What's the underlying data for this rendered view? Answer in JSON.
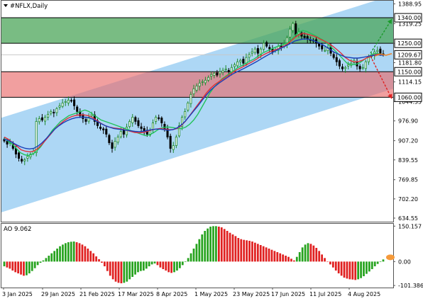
{
  "symbol_title": "#NFLX,Daily",
  "ao_title": "AO 9.062",
  "colors": {
    "channel": "#9fd0f3",
    "resistance_zone": "#4ca55a",
    "support_zone": "#e96b6b",
    "bull_candle": "#1f8a2e",
    "bear_candle": "#000000",
    "ma_fast": "#22c25a",
    "ma_mid": "#e0303a",
    "ma_slow": "#1a3fb8",
    "ao_up": "#27a31f",
    "ao_down": "#e02020",
    "arrow_up": "#1a9a2a",
    "arrow_down": "#e02020",
    "forecast_line": "#f08020"
  },
  "chart_data": [
    {
      "type": "candlestick",
      "title": "#NFLX,Daily",
      "x_labels": [
        "3 Jan 2025",
        "29 Jan 2025",
        "21 Feb 2025",
        "17 Mar 2025",
        "8 Apr 2025",
        "1 May 2025",
        "23 May 2025",
        "17 Jun 2025",
        "11 Jul 2025",
        "4 Aug 2025"
      ],
      "y_ticks": [
        "1388.95",
        "1319.25",
        "1250.00",
        "1181.80",
        "1114.15",
        "1044.55",
        "976.90",
        "907.20",
        "839.55",
        "769.85",
        "702.20",
        "634.55"
      ],
      "ylim": [
        634.55,
        1388.95
      ],
      "levels": [
        {
          "label": "1340.00",
          "value": 1340,
          "role": "resistance-top"
        },
        {
          "label": "1250.00",
          "value": 1250,
          "role": "resistance-bottom"
        },
        {
          "label": "1209.67",
          "value": 1209.67,
          "role": "current-price"
        },
        {
          "label": "1150.00",
          "value": 1150,
          "role": "support-top"
        },
        {
          "label": "1060.00",
          "value": 1060,
          "role": "support-bottom"
        }
      ],
      "channel": {
        "upper_start": 988,
        "upper_end": 1420,
        "lower_start": 655,
        "lower_end": 1090
      },
      "close": [
        906,
        895,
        900,
        880,
        860,
        845,
        835,
        840,
        852,
        860,
        870,
        975,
        985,
        980,
        990,
        1000,
        1010,
        1005,
        1020,
        1030,
        1040,
        1045,
        1050,
        1048,
        1030,
        1010,
        995,
        985,
        975,
        990,
        1000,
        975,
        960,
        950,
        945,
        930,
        900,
        880,
        905,
        920,
        940,
        930,
        955,
        975,
        990,
        975,
        960,
        950,
        940,
        930,
        945,
        970,
        990,
        985,
        970,
        950,
        920,
        880,
        890,
        920,
        960,
        990,
        1010,
        1040,
        1070,
        1090,
        1100,
        1110,
        1115,
        1120,
        1130,
        1140,
        1145,
        1138,
        1150,
        1155,
        1160,
        1150,
        1165,
        1175,
        1185,
        1190,
        1180,
        1200,
        1210,
        1220,
        1230,
        1215,
        1230,
        1250,
        1240,
        1230,
        1220,
        1228,
        1240,
        1235,
        1250,
        1270,
        1300,
        1320,
        1280,
        1290,
        1275,
        1270,
        1265,
        1260,
        1258,
        1250,
        1240,
        1230,
        1225,
        1235,
        1215,
        1200,
        1185,
        1170,
        1160,
        1165,
        1175,
        1180,
        1190,
        1170,
        1160,
        1165,
        1185,
        1200,
        1210,
        1220,
        1225,
        1215,
        1209.67
      ],
      "moving_averages": [
        {
          "role": "fast",
          "values": [
            915,
            905,
            895,
            880,
            865,
            858,
            855,
            860,
            870,
            885,
            905,
            925,
            945,
            960,
            975,
            985,
            995,
            1000,
            1005,
            1010,
            1015,
            1010,
            1000,
            990,
            980,
            975,
            970,
            965,
            960,
            955,
            950,
            945,
            940,
            935,
            930,
            925,
            928,
            935,
            945,
            952,
            955,
            955,
            953,
            950,
            950,
            955,
            965,
            980,
            1000,
            1025,
            1050,
            1075,
            1095,
            1110,
            1125,
            1135,
            1145,
            1155,
            1165,
            1172,
            1180,
            1188,
            1195,
            1205,
            1215,
            1222,
            1228,
            1235,
            1240,
            1245,
            1250,
            1260,
            1275,
            1290,
            1295,
            1292,
            1285,
            1278,
            1270,
            1262,
            1250,
            1238,
            1225,
            1210,
            1195,
            1180,
            1175,
            1175,
            1180,
            1190,
            1200,
            1210,
            1215,
            1213,
            1210
          ]
        },
        {
          "role": "mid",
          "values": [
            920,
            912,
            900,
            888,
            875,
            870,
            868,
            870,
            880,
            895,
            912,
            930,
            948,
            962,
            975,
            985,
            992,
            996,
            998,
            998,
            995,
            988,
            978,
            968,
            960,
            955,
            952,
            950,
            948,
            944,
            940,
            936,
            935,
            936,
            940,
            945,
            948,
            950,
            948,
            946,
            946,
            950,
            960,
            975,
            995,
            1015,
            1035,
            1055,
            1075,
            1092,
            1105,
            1115,
            1125,
            1135,
            1145,
            1155,
            1162,
            1170,
            1178,
            1186,
            1195,
            1205,
            1213,
            1220,
            1225,
            1230,
            1237,
            1245,
            1257,
            1270,
            1280,
            1285,
            1282,
            1278,
            1273,
            1265,
            1258,
            1250,
            1240,
            1228,
            1215,
            1200,
            1190,
            1185,
            1185,
            1190,
            1198,
            1205,
            1210,
            1212,
            1210
          ]
        },
        {
          "role": "slow",
          "values": [
            912,
            908,
            900,
            892,
            885,
            880,
            878,
            880,
            888,
            900,
            915,
            932,
            948,
            960,
            970,
            978,
            984,
            988,
            990,
            990,
            988,
            983,
            975,
            967,
            960,
            955,
            950,
            948,
            946,
            944,
            942,
            940,
            939,
            940,
            943,
            946,
            948,
            948,
            946,
            944,
            946,
            952,
            962,
            976,
            994,
            1012,
            1030,
            1050,
            1068,
            1085,
            1098,
            1110,
            1120,
            1130,
            1140,
            1148,
            1155,
            1162,
            1170,
            1178,
            1186,
            1195,
            1204,
            1212,
            1220,
            1228,
            1235,
            1242,
            1250,
            1258,
            1262,
            1265,
            1265,
            1262,
            1256,
            1250,
            1242,
            1232,
            1222,
            1214,
            1208,
            1202,
            1200,
            1198,
            1198,
            1200,
            1203,
            1206,
            1208,
            1209,
            1208
          ]
        }
      ],
      "arrows": [
        {
          "direction": "up",
          "from": 1215,
          "to": 1335
        },
        {
          "direction": "down",
          "from": 1205,
          "to": 1055
        }
      ]
    },
    {
      "type": "bar",
      "title": "AO 9.062",
      "y_ticks": [
        "150.157",
        "0.00",
        "-101.386"
      ],
      "ylim": [
        -110,
        160
      ],
      "values": [
        -20,
        -25,
        -30,
        -38,
        -45,
        -50,
        -55,
        -60,
        -58,
        -50,
        -40,
        -28,
        -15,
        -5,
        5,
        15,
        25,
        35,
        45,
        55,
        65,
        72,
        78,
        82,
        84,
        85,
        82,
        78,
        72,
        65,
        55,
        45,
        35,
        22,
        10,
        -5,
        -20,
        -40,
        -60,
        -75,
        -85,
        -90,
        -92,
        -90,
        -85,
        -75,
        -65,
        -55,
        -45,
        -40,
        -38,
        -30,
        -20,
        -12,
        -8,
        -15,
        -25,
        -32,
        -38,
        -45,
        -48,
        -45,
        -38,
        -28,
        -15,
        -2,
        15,
        35,
        55,
        75,
        95,
        115,
        130,
        140,
        148,
        150,
        150,
        148,
        145,
        138,
        130,
        122,
        115,
        108,
        100,
        95,
        92,
        90,
        88,
        85,
        80,
        75,
        70,
        65,
        60,
        55,
        50,
        45,
        40,
        35,
        30,
        25,
        20,
        12,
        5,
        20,
        40,
        60,
        72,
        78,
        75,
        68,
        58,
        45,
        30,
        15,
        0,
        -12,
        -25,
        -38,
        -50,
        -60,
        -68,
        -72,
        -75,
        -76,
        -78,
        -75,
        -70,
        -62,
        -52,
        -42,
        -32,
        -20,
        -10,
        -2,
        9.062
      ]
    }
  ]
}
